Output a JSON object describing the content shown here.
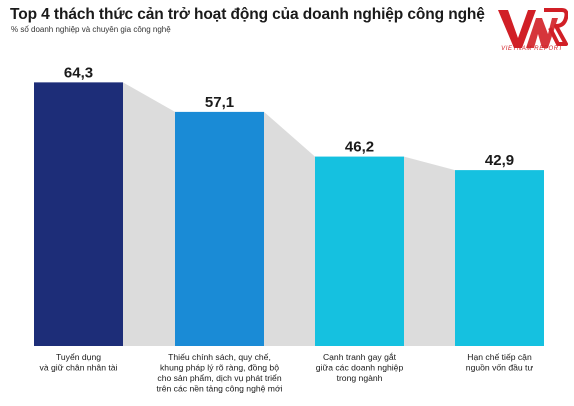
{
  "header": {
    "title": "Top 4 thách thức cản trở hoạt động của doanh nghiệp công nghệ",
    "subtitle": "% số doanh nghiệp và chuyên gia công nghệ",
    "logo_letters": "VNR",
    "logo_text": "VIETNAM REPORT"
  },
  "colors": {
    "bars": [
      "#1d2d78",
      "#1a8bd6",
      "#15c1e0",
      "#15c1e0"
    ],
    "connector": "#dcdcdc",
    "logo": "#d11f26"
  },
  "chart_data": {
    "type": "bar",
    "title": "Top 4 thách thức cản trở hoạt động của doanh nghiệp công nghệ",
    "subtitle": "% số doanh nghiệp và chuyên gia công nghệ",
    "categories": [
      [
        "Tuyển dụng",
        "và giữ chân nhân tài"
      ],
      [
        "Thiếu chính sách, quy chế,",
        "khung pháp lý rõ ràng, đồng bộ",
        "cho sản phẩm, dịch vụ phát triển",
        "trên các nền tảng công nghệ mới"
      ],
      [
        "Cạnh tranh gay gắt",
        "giữa các doanh nghiệp",
        "trong ngành"
      ],
      [
        "Hạn chế tiếp cận",
        "nguồn vốn đầu tư"
      ]
    ],
    "values": [
      64.3,
      57.1,
      46.2,
      42.9
    ],
    "value_labels": [
      "64,3",
      "57,1",
      "46,2",
      "42,9"
    ],
    "ylim": [
      0,
      70
    ],
    "grid": false,
    "legend": "none"
  }
}
